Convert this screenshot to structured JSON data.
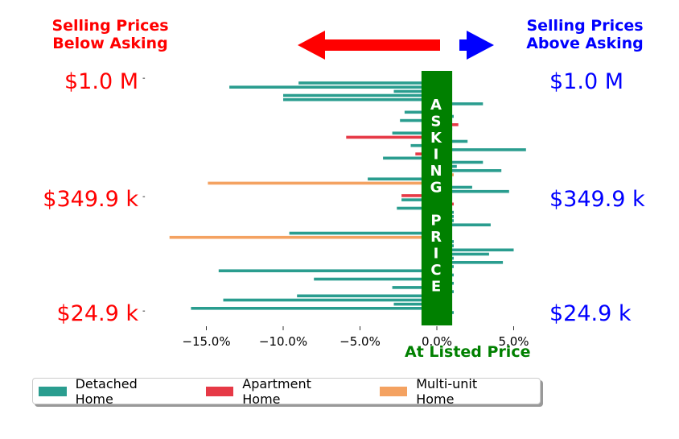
{
  "header": {
    "left_line1": "Selling Prices",
    "left_line2": "Below Asking",
    "right_line1": "Selling Prices",
    "right_line2": "Above Asking",
    "left_color": "#ff0000",
    "right_color": "#0000ff"
  },
  "price_labels": {
    "top": "$1.0 M",
    "mid": "$349.9 k",
    "bottom": "$24.9 k"
  },
  "arrows": {
    "left_color": "#ff0000",
    "right_color": "#0000ff"
  },
  "asking_band": {
    "text": "ASKING PRICE",
    "color": "#008000",
    "half_width_pct": 1.0
  },
  "listed_label": "At Listed Price",
  "legend": {
    "items": [
      {
        "label": "Detached Home",
        "color": "#2a9d8f"
      },
      {
        "label": "Apartment Home",
        "color": "#e63946"
      },
      {
        "label": "Multi-unit Home",
        "color": "#f4a261"
      }
    ]
  },
  "chart_data": {
    "type": "bar",
    "orientation": "horizontal",
    "xlabel": "",
    "ylabel": "",
    "xlim": [
      -17.9,
      7.2
    ],
    "xticks": [
      -15.0,
      -10.0,
      -5.0,
      0.0,
      5.0
    ],
    "xtick_labels": [
      "−15.0%",
      "−10.0%",
      "−5.0%",
      "0.0%",
      "5.0%"
    ],
    "grid": false,
    "legend_position": "bottom",
    "series": [
      {
        "name": "Detached Home",
        "color": "#2a9d8f"
      },
      {
        "name": "Apartment Home",
        "color": "#e63946"
      },
      {
        "name": "Multi-unit Home",
        "color": "#f4a261"
      }
    ],
    "bars_top_to_bottom": [
      {
        "type": "Detached Home",
        "value": -9.0
      },
      {
        "type": "Detached Home",
        "value": -13.5
      },
      {
        "type": "Detached Home",
        "value": -2.8
      },
      {
        "type": "Detached Home",
        "value": -10.0
      },
      {
        "type": "Detached Home",
        "value": -10.0
      },
      {
        "type": "Detached Home",
        "value": 3.0
      },
      {
        "type": "Detached Home",
        "value": 0.7
      },
      {
        "type": "Detached Home",
        "value": -2.1
      },
      {
        "type": "Detached Home",
        "value": 1.1
      },
      {
        "type": "Detached Home",
        "value": -2.4
      },
      {
        "type": "Apartment Home",
        "value": 1.4
      },
      {
        "type": "Detached Home",
        "value": 1.0
      },
      {
        "type": "Detached Home",
        "value": -2.9
      },
      {
        "type": "Apartment Home",
        "value": -5.9
      },
      {
        "type": "Detached Home",
        "value": 2.0
      },
      {
        "type": "Detached Home",
        "value": -1.7
      },
      {
        "type": "Detached Home",
        "value": 5.8
      },
      {
        "type": "Apartment Home",
        "value": -1.4
      },
      {
        "type": "Detached Home",
        "value": -3.5
      },
      {
        "type": "Detached Home",
        "value": 3.0
      },
      {
        "type": "Detached Home",
        "value": 1.3
      },
      {
        "type": "Detached Home",
        "value": 4.2
      },
      {
        "type": "Multi-unit Home",
        "value": 1.1
      },
      {
        "type": "Detached Home",
        "value": -4.5
      },
      {
        "type": "Multi-unit Home",
        "value": -14.9
      },
      {
        "type": "Detached Home",
        "value": 2.3
      },
      {
        "type": "Detached Home",
        "value": 4.7
      },
      {
        "type": "Apartment Home",
        "value": -2.3
      },
      {
        "type": "Detached Home",
        "value": -2.3
      },
      {
        "type": "Apartment Home",
        "value": 1.1
      },
      {
        "type": "Detached Home",
        "value": -2.6
      },
      {
        "type": "Detached Home",
        "value": 1.1
      },
      {
        "type": "Detached Home",
        "value": 1.1
      },
      {
        "type": "Detached Home",
        "value": 1.1
      },
      {
        "type": "Detached Home",
        "value": 3.5
      },
      {
        "type": "Detached Home",
        "value": 0.7
      },
      {
        "type": "Detached Home",
        "value": -9.6
      },
      {
        "type": "Multi-unit Home",
        "value": -17.4
      },
      {
        "type": "Detached Home",
        "value": 1.1
      },
      {
        "type": "Detached Home",
        "value": 1.1
      },
      {
        "type": "Detached Home",
        "value": 5.0
      },
      {
        "type": "Detached Home",
        "value": 3.4
      },
      {
        "type": "Detached Home",
        "value": 1.1
      },
      {
        "type": "Detached Home",
        "value": 4.3
      },
      {
        "type": "Detached Home",
        "value": 1.1
      },
      {
        "type": "Detached Home",
        "value": -14.2
      },
      {
        "type": "Detached Home",
        "value": 1.1
      },
      {
        "type": "Detached Home",
        "value": -8.0
      },
      {
        "type": "Detached Home",
        "value": 1.1
      },
      {
        "type": "Detached Home",
        "value": -2.9
      },
      {
        "type": "Detached Home",
        "value": 1.1
      },
      {
        "type": "Detached Home",
        "value": -9.1
      },
      {
        "type": "Detached Home",
        "value": -13.9
      },
      {
        "type": "Detached Home",
        "value": -2.8
      },
      {
        "type": "Detached Home",
        "value": -16.0
      },
      {
        "type": "Detached Home",
        "value": 1.1
      }
    ]
  }
}
